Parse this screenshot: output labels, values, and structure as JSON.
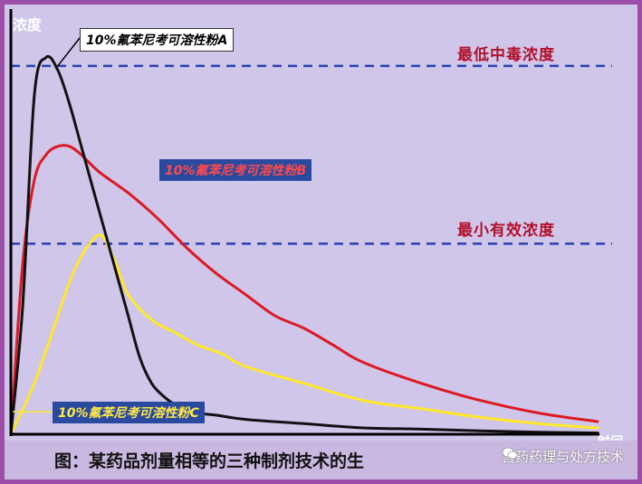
{
  "chart_data": {
    "type": "line",
    "ylabel": "浓度",
    "xlabel": "时间",
    "xlim": [
      0,
      100
    ],
    "ylim": [
      0,
      100
    ],
    "grid": false,
    "reference_lines": [
      {
        "label": "最低中毒浓度",
        "y": 87,
        "color": "#2a3fb0"
      },
      {
        "label": "最小有效浓度",
        "y": 45,
        "color": "#2a3fb0"
      }
    ],
    "series": [
      {
        "name": "10%氟苯尼考可溶性粉A",
        "color": "#111111",
        "x": [
          0,
          2,
          4,
          6,
          8,
          10,
          12,
          14,
          16,
          18,
          20,
          22,
          24,
          26,
          28,
          30,
          32,
          35,
          40,
          50,
          60,
          70,
          80,
          90,
          100
        ],
        "y": [
          0,
          30,
          80,
          89,
          86,
          78,
          68,
          58,
          48,
          38,
          28,
          18,
          12,
          9,
          7,
          6,
          5,
          4.5,
          3.5,
          2.5,
          1.5,
          1.2,
          0.8,
          0.5,
          0.3
        ]
      },
      {
        "name": "10%氟苯尼考可溶性粉B",
        "color": "#dd1a24",
        "x": [
          0,
          2,
          4,
          6,
          8,
          10,
          12,
          15,
          20,
          25,
          30,
          35,
          40,
          45,
          50,
          55,
          60,
          70,
          80,
          90,
          100
        ],
        "y": [
          0,
          40,
          60,
          66,
          68,
          68,
          66,
          62,
          57,
          51,
          44,
          38,
          33,
          28,
          25,
          21,
          17,
          12,
          8,
          5,
          3
        ]
      },
      {
        "name": "10%氟苯尼考可溶性粉C",
        "color": "#ffe82a",
        "x": [
          0,
          4,
          8,
          10,
          12,
          14,
          15,
          16,
          18,
          20,
          24,
          28,
          32,
          36,
          40,
          50,
          60,
          70,
          80,
          90,
          100
        ],
        "y": [
          0,
          12,
          28,
          36,
          42,
          46,
          47,
          46,
          40,
          33,
          27,
          24,
          21,
          19,
          16,
          12,
          8,
          6,
          4,
          2.5,
          1.5
        ]
      }
    ]
  },
  "caption": "图：某药品剂量相等的三种制剂技术的生",
  "watermark": "兽药药理与处方技术",
  "colors": {
    "frame": "#9b4fa8",
    "panel": "#cfc6ea",
    "reference_label": "#b3102a"
  }
}
